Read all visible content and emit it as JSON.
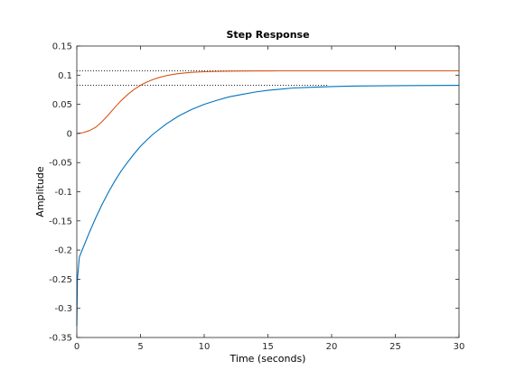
{
  "chart_data": {
    "type": "line",
    "title": "Step Response",
    "xlabel": "Time (seconds)",
    "ylabel": "Amplitude",
    "xlim": [
      0,
      30
    ],
    "ylim": [
      -0.35,
      0.15
    ],
    "x_ticks": [
      "0",
      "5",
      "10",
      "15",
      "20",
      "25",
      "30"
    ],
    "y_ticks": [
      "-0.35",
      "-0.3",
      "-0.25",
      "-0.2",
      "-0.15",
      "-0.1",
      "-0.05",
      "0",
      "0.05",
      "0.1",
      "0.15"
    ],
    "grid": false,
    "series": [
      {
        "color": "#d95319",
        "x": [
          0,
          0.5,
          1,
          1.5,
          2,
          2.5,
          3,
          3.5,
          4,
          4.5,
          5,
          5.5,
          6,
          6.5,
          7,
          7.5,
          8,
          8.5,
          9,
          10,
          11,
          12,
          13,
          14,
          15,
          16,
          17,
          18,
          20,
          22,
          25,
          30
        ],
        "y": [
          0,
          0.0014,
          0.0049,
          0.0109,
          0.0208,
          0.0325,
          0.0451,
          0.0566,
          0.0668,
          0.0755,
          0.0826,
          0.0883,
          0.0928,
          0.0963,
          0.099,
          0.1011,
          0.1027,
          0.1039,
          0.1048,
          0.1059,
          0.1065,
          0.1069,
          0.1071,
          0.1072,
          0.1073,
          0.1074,
          0.1074,
          0.1075,
          0.1075,
          0.1075,
          0.1075,
          0.1075
        ]
      },
      {
        "color": "#0072bd",
        "x": [
          0,
          0.05,
          0.2,
          0.5,
          1,
          1.5,
          2,
          2.5,
          3,
          3.5,
          4,
          4.5,
          5,
          5.5,
          6,
          7,
          8,
          9,
          10,
          11,
          12,
          13,
          14,
          15,
          16,
          17,
          18,
          20,
          22,
          25,
          30
        ],
        "y": [
          -0.33,
          -0.25,
          -0.212,
          -0.196,
          -0.169,
          -0.144,
          -0.121,
          -0.1,
          -0.081,
          -0.064,
          -0.049,
          -0.035,
          -0.022,
          -0.011,
          -0.001,
          0.016,
          0.03,
          0.041,
          0.05,
          0.057,
          0.063,
          0.067,
          0.071,
          0.074,
          0.076,
          0.078,
          0.079,
          0.0805,
          0.0815,
          0.082,
          0.0825
        ]
      }
    ],
    "steady_state": [
      {
        "value": 0.1075,
        "x_end": 17.3
      },
      {
        "value": 0.0825,
        "x_end": 19.7
      }
    ]
  }
}
